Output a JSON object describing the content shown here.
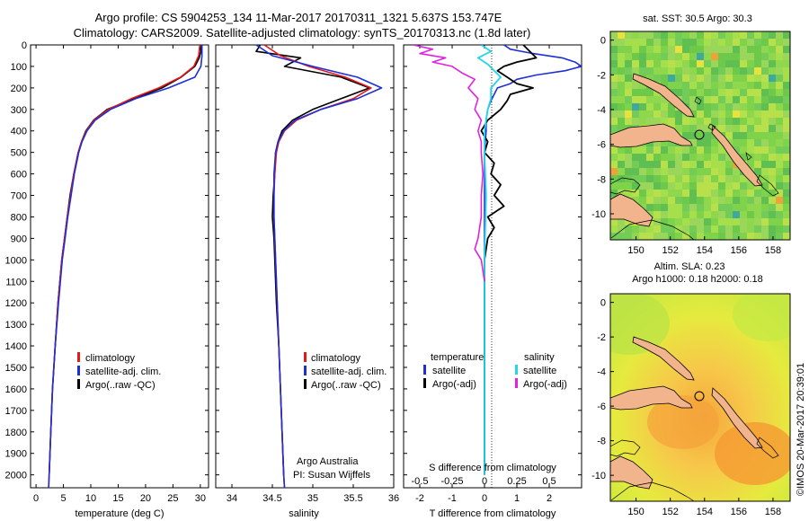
{
  "header": {
    "title_line1": "Argo profile: CS 5904253_134 11-Mar-2017 20170311_1321 5.637S 153.747E",
    "title_line2": "Climatology: CARS2009. Satellite-adjusted climatology: synTS_20170313.nc (1.8d later)"
  },
  "colors": {
    "climatology": "#e31a1c",
    "satellite": "#1f2fd6",
    "argo": "#000000",
    "salinity_satellite": "#22d8e8",
    "salinity_argo": "#e022e0",
    "land": "#f2b48c"
  },
  "depth_axis": {
    "ticks": [
      0,
      100,
      200,
      300,
      400,
      500,
      600,
      700,
      800,
      900,
      1000,
      1100,
      1200,
      1300,
      1400,
      1500,
      1600,
      1700,
      1800,
      1900,
      2000
    ],
    "range": [
      0,
      2060
    ]
  },
  "legend_profile": {
    "climatology": "climatology",
    "satellite": "satellite-adj. clim.",
    "argo": "Argo(..raw -QC)"
  },
  "legend_difference": {
    "temperature_heading": "temperature",
    "salinity_heading": "salinity",
    "satellite": "satellite",
    "argo": "Argo(-adj)"
  },
  "credits": {
    "line1": "Argo Australia",
    "line2": "PI: Susan Wijffels"
  },
  "imos_stamp": "©IMOS 20-Mar-2017 20:39:01",
  "chart_data": [
    {
      "type": "line",
      "title": "",
      "xlabel": "temperature (deg C)",
      "ylabel": "",
      "xlim": [
        -1,
        31.5
      ],
      "ylim": [
        2060,
        0
      ],
      "xticks": [
        0,
        5,
        10,
        15,
        20,
        25,
        30
      ],
      "series": [
        {
          "name": "climatology",
          "depth": [
            0,
            50,
            100,
            150,
            200,
            250,
            300,
            350,
            400,
            450,
            500,
            600,
            700,
            800,
            900,
            1000,
            1200,
            1400,
            1600,
            1800,
            2000,
            2060
          ],
          "values": [
            29.9,
            29.7,
            28.8,
            26.4,
            22.4,
            17.4,
            13.2,
            10.6,
            9.2,
            8.3,
            7.7,
            6.9,
            6.3,
            5.7,
            5.2,
            4.7,
            4.0,
            3.5,
            3.0,
            2.7,
            2.4,
            2.3
          ]
        },
        {
          "name": "satellite-adj. clim.",
          "depth": [
            0,
            50,
            100,
            150,
            200,
            250,
            300,
            350,
            400,
            450,
            500,
            600,
            700,
            800,
            900,
            1000,
            1200,
            1400,
            1600,
            1800,
            2000,
            2060
          ],
          "values": [
            30.3,
            30.3,
            30.1,
            29.0,
            24.2,
            18.2,
            13.6,
            10.8,
            9.3,
            8.4,
            7.8,
            7.0,
            6.4,
            5.8,
            5.3,
            4.8,
            4.1,
            3.5,
            3.0,
            2.7,
            2.4,
            2.3
          ]
        },
        {
          "name": "Argo(..raw -QC)",
          "depth": [
            0,
            30,
            60,
            100,
            150,
            200,
            250,
            300,
            350,
            400,
            450,
            500,
            600,
            700,
            800,
            900,
            1000,
            1200,
            1400,
            1600,
            1800,
            2000
          ],
          "values": [
            30.0,
            30.1,
            29.8,
            29.0,
            26.5,
            23.0,
            18.0,
            13.0,
            10.5,
            9.1,
            8.3,
            7.7,
            6.9,
            6.2,
            5.7,
            5.2,
            4.7,
            4.0,
            3.5,
            3.0,
            2.7,
            2.4
          ]
        }
      ]
    },
    {
      "type": "line",
      "title": "",
      "xlabel": "salinity",
      "ylabel": "",
      "xlim": [
        33.8,
        36.0
      ],
      "ylim": [
        2060,
        0
      ],
      "xticks": [
        34,
        34.5,
        35,
        35.5,
        36
      ],
      "series": [
        {
          "name": "climatology",
          "depth": [
            0,
            50,
            100,
            150,
            200,
            250,
            300,
            350,
            400,
            450,
            500,
            600,
            700,
            800,
            900,
            1000,
            1200,
            1400,
            1600,
            1800,
            2000,
            2060
          ],
          "values": [
            34.4,
            34.6,
            34.95,
            35.4,
            35.72,
            35.5,
            35.1,
            34.8,
            34.65,
            34.58,
            34.55,
            34.53,
            34.52,
            34.52,
            34.53,
            34.54,
            34.56,
            34.58,
            34.6,
            34.62,
            34.64,
            34.65
          ]
        },
        {
          "name": "satellite-adj. clim.",
          "depth": [
            0,
            50,
            100,
            150,
            200,
            250,
            300,
            350,
            400,
            450,
            500,
            600,
            700,
            800,
            900,
            1000,
            1200,
            1400,
            1600,
            1800,
            2000,
            2060
          ],
          "values": [
            34.3,
            34.5,
            35.0,
            35.55,
            35.85,
            35.55,
            35.1,
            34.78,
            34.64,
            34.57,
            34.54,
            34.52,
            34.52,
            34.52,
            34.53,
            34.54,
            34.56,
            34.58,
            34.6,
            34.62,
            34.64,
            34.65
          ]
        },
        {
          "name": "Argo(..raw -QC)",
          "depth": [
            0,
            30,
            60,
            100,
            150,
            200,
            250,
            300,
            350,
            400,
            450,
            500,
            600,
            700,
            800,
            900,
            1000,
            1200,
            1400,
            1600,
            1800,
            2000
          ],
          "values": [
            34.35,
            34.3,
            34.85,
            34.65,
            35.35,
            35.7,
            35.35,
            35.0,
            34.75,
            34.62,
            34.57,
            34.54,
            34.53,
            34.51,
            34.5,
            34.52,
            34.53,
            34.55,
            34.58,
            34.6,
            34.62,
            34.64
          ]
        }
      ]
    },
    {
      "type": "line",
      "title": "",
      "xlabel": "T difference from climatology",
      "ylabel": "",
      "x2label": "S difference from climatology",
      "xlim": [
        -2.5,
        3.0
      ],
      "ylim": [
        2060,
        0
      ],
      "xticks": [
        -2,
        -1,
        0,
        1,
        2
      ],
      "x2ticks": [
        "-0.5",
        "-0.25",
        "0",
        "0.25",
        "0.5"
      ],
      "x2tick_positions": [
        -2,
        -1,
        0,
        1,
        2
      ],
      "series": [
        {
          "name": "temperature satellite",
          "depth": [
            0,
            20,
            40,
            60,
            80,
            100,
            120,
            140,
            160,
            180,
            200,
            230,
            260,
            300,
            350,
            400,
            500,
            700,
            1000,
            1500,
            2000
          ],
          "values": [
            0.6,
            0.8,
            1.5,
            2.4,
            2.8,
            3.0,
            2.5,
            1.6,
            1.0,
            0.8,
            0.4,
            0.3,
            0.2,
            0.1,
            0.05,
            0.05,
            0.0,
            0.0,
            0.0,
            0.0,
            0.0
          ]
        },
        {
          "name": "temperature Argo(-adj)",
          "depth": [
            0,
            30,
            60,
            80,
            100,
            120,
            150,
            180,
            200,
            230,
            260,
            300,
            350,
            400,
            450,
            500,
            550,
            600,
            650,
            700,
            750,
            800,
            850,
            900,
            1000,
            1200,
            1500,
            2000
          ],
          "values": [
            1.2,
            1.4,
            1.6,
            1.0,
            0.6,
            0.4,
            0.7,
            1.0,
            1.5,
            0.8,
            0.7,
            0.5,
            0.1,
            -0.1,
            0.1,
            0.0,
            0.3,
            0.2,
            0.5,
            0.3,
            0.6,
            0.1,
            0.3,
            0.1,
            0.0,
            0.0,
            0.0,
            0.0
          ]
        },
        {
          "name": "salinity satellite",
          "depth": [
            0,
            30,
            60,
            90,
            120,
            150,
            200,
            250,
            300,
            400,
            500,
            700,
            1000,
            1500,
            2000
          ],
          "values": [
            -0.1,
            0.2,
            -0.2,
            0.1,
            0.3,
            0.5,
            0.2,
            0.2,
            0.1,
            0.0,
            0.0,
            0.05,
            0.0,
            0.0,
            0.0
          ]
        },
        {
          "name": "salinity Argo(-adj)",
          "depth": [
            0,
            20,
            40,
            60,
            80,
            100,
            130,
            160,
            200,
            250,
            300,
            350,
            400,
            450,
            500,
            600,
            700,
            800,
            900,
            950,
            1000,
            1100
          ],
          "values": [
            -2.2,
            -1.6,
            -2.0,
            -1.2,
            -1.6,
            -1.0,
            -0.7,
            -0.3,
            -0.5,
            -0.2,
            -0.3,
            -0.1,
            -0.2,
            -0.1,
            -0.1,
            -0.05,
            -0.1,
            -0.1,
            -0.2,
            -0.3,
            -0.1,
            0.0
          ]
        }
      ]
    },
    {
      "type": "heatmap",
      "title": "sat. SST: 30.5 Argo: 30.3",
      "xlabel": "",
      "ylabel": "",
      "xlim": [
        148.5,
        159
      ],
      "ylim": [
        -11.5,
        0.5
      ],
      "xticks": [
        150,
        152,
        154,
        156,
        158
      ],
      "yticks": [
        0,
        -2,
        -4,
        -6,
        -8,
        -10
      ],
      "profile_location": {
        "lon": 153.747,
        "lat": -5.637
      }
    },
    {
      "type": "heatmap",
      "title": "Altim. SLA: 0.23",
      "subtitle": "Argo h1000: 0.18 h2000: 0.18",
      "xlabel": "",
      "ylabel": "",
      "xlim": [
        148.5,
        159
      ],
      "ylim": [
        -11.5,
        0.5
      ],
      "xticks": [
        150,
        152,
        154,
        156,
        158
      ],
      "yticks": [
        0,
        -2,
        -4,
        -6,
        -8,
        -10
      ],
      "profile_location": {
        "lon": 153.747,
        "lat": -5.637
      }
    }
  ]
}
